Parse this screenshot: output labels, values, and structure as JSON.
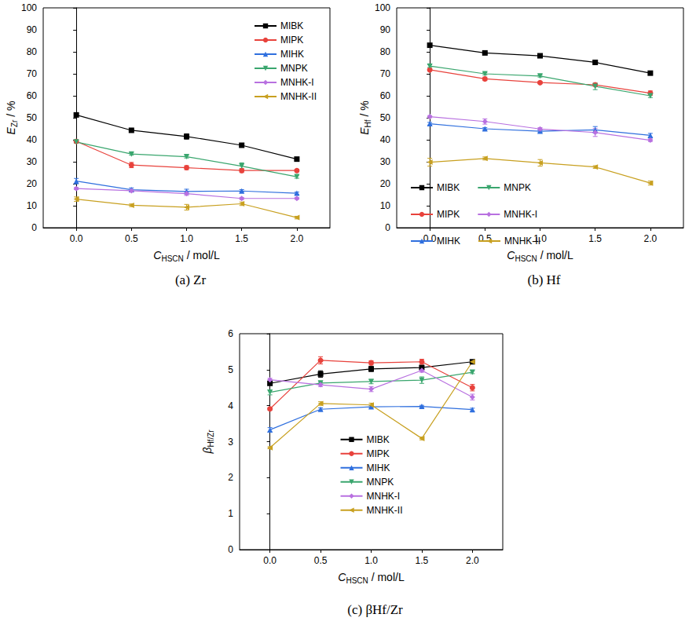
{
  "chart_data": [
    {
      "type": "line",
      "title": "(a) Zr",
      "x_label": "CHSCN / mol/L",
      "y_label": "EZr / %",
      "x": [
        0,
        0.5,
        1,
        1.5,
        2
      ],
      "xlim": [
        -0.3,
        2.3
      ],
      "xticks": [
        {
          "value": 0,
          "label": "0.0"
        },
        {
          "value": 0.5,
          "label": "0.5"
        },
        {
          "value": 1,
          "label": "1.0"
        },
        {
          "value": 1.5,
          "label": "1.5"
        },
        {
          "value": 2,
          "label": "2.0"
        }
      ],
      "ylim": [
        0,
        100
      ],
      "yticks": [
        0,
        10,
        20,
        30,
        40,
        50,
        60,
        70,
        80,
        90,
        100
      ],
      "grid": false,
      "legend": "upper right",
      "series": [
        {
          "name": "MIBK",
          "color": "#000000",
          "marker": "square",
          "values": [
            51.3,
            44.3,
            41.5,
            37.5,
            31.2
          ],
          "errors": [
            0.6,
            0.5,
            1.2,
            0.5,
            0.5
          ]
        },
        {
          "name": "MIPK",
          "color": "#e8423c",
          "marker": "circle",
          "values": [
            39.3,
            28.5,
            27.3,
            26.0,
            26.0
          ],
          "errors": [
            0.5,
            1.2,
            0.9,
            0.9,
            0.6
          ]
        },
        {
          "name": "MIHK",
          "color": "#2f6fde",
          "marker": "triangle-up",
          "values": [
            21.2,
            17.3,
            16.5,
            16.7,
            15.7
          ],
          "errors": [
            1.2,
            0.8,
            1.0,
            0.6,
            0.5
          ]
        },
        {
          "name": "MNPK",
          "color": "#3aa66e",
          "marker": "triangle-down",
          "values": [
            39.0,
            33.5,
            32.3,
            28.0,
            23.2
          ],
          "errors": [
            0.6,
            0.5,
            0.6,
            1.5,
            0.7
          ]
        },
        {
          "name": "MNHK-I",
          "color": "#b870e0",
          "marker": "diamond",
          "values": [
            17.8,
            16.8,
            15.5,
            13.3,
            13.3
          ],
          "errors": [
            0.5,
            0.6,
            0.8,
            0.5,
            0.4
          ]
        },
        {
          "name": "MNHK-II",
          "color": "#c8a020",
          "marker": "triangle-left",
          "values": [
            13.0,
            10.2,
            9.3,
            10.9,
            4.6
          ],
          "errors": [
            1.0,
            0.6,
            1.3,
            0.8,
            0.6
          ]
        }
      ]
    },
    {
      "type": "line",
      "title": "(b) Hf",
      "x_label": "CHSCN / mol/L",
      "y_label": "EHf / %",
      "x": [
        0,
        0.5,
        1,
        1.5,
        2
      ],
      "xlim": [
        -0.3,
        2.3
      ],
      "xticks": [
        {
          "value": 0,
          "label": "0.0"
        },
        {
          "value": 0.5,
          "label": "0.5"
        },
        {
          "value": 1,
          "label": "1.0"
        },
        {
          "value": 1.5,
          "label": "1.5"
        },
        {
          "value": 2,
          "label": "2.0"
        }
      ],
      "ylim": [
        0,
        100
      ],
      "yticks": [
        0,
        10,
        20,
        30,
        40,
        50,
        60,
        70,
        80,
        90,
        100
      ],
      "grid": false,
      "legend": "lower left",
      "series": [
        {
          "name": "MIBK",
          "color": "#000000",
          "marker": "square",
          "values": [
            83.0,
            79.5,
            78.2,
            75.2,
            70.3
          ],
          "errors": [
            0.5,
            0.4,
            0.5,
            0.7,
            0.8
          ]
        },
        {
          "name": "MIPK",
          "color": "#e8423c",
          "marker": "circle",
          "values": [
            71.8,
            67.7,
            66.0,
            65.0,
            61.2
          ],
          "errors": [
            0.6,
            0.8,
            0.5,
            0.6,
            1.0
          ]
        },
        {
          "name": "MIHK",
          "color": "#2f6fde",
          "marker": "triangle-up",
          "values": [
            47.3,
            45.0,
            43.9,
            44.5,
            42.0
          ],
          "errors": [
            0.6,
            0.5,
            0.5,
            1.5,
            0.9
          ]
        },
        {
          "name": "MNPK",
          "color": "#3aa66e",
          "marker": "triangle-down",
          "values": [
            73.5,
            70.0,
            69.0,
            64.3,
            60.0
          ],
          "errors": [
            0.6,
            0.5,
            0.5,
            1.5,
            0.8
          ]
        },
        {
          "name": "MNHK-I",
          "color": "#b870e0",
          "marker": "diamond",
          "values": [
            50.5,
            48.3,
            44.9,
            43.3,
            39.8
          ],
          "errors": [
            0.5,
            1.2,
            0.6,
            1.8,
            0.6
          ]
        },
        {
          "name": "MNHK-II",
          "color": "#c8a020",
          "marker": "triangle-left",
          "values": [
            29.8,
            31.5,
            29.5,
            27.6,
            20.3
          ],
          "errors": [
            1.8,
            0.7,
            1.5,
            0.6,
            0.9
          ]
        }
      ]
    },
    {
      "type": "line",
      "title": "(c) βHf/Zr",
      "x_label": "CHSCN / mol/L",
      "y_label": "βHf/Zr",
      "x": [
        0,
        0.5,
        1,
        1.5,
        2
      ],
      "xlim": [
        -0.3,
        2.3
      ],
      "xticks": [
        {
          "value": 0,
          "label": "0.0"
        },
        {
          "value": 0.5,
          "label": "0.5"
        },
        {
          "value": 1,
          "label": "1.0"
        },
        {
          "value": 1.5,
          "label": "1.5"
        },
        {
          "value": 2,
          "label": "2.0"
        }
      ],
      "ylim": [
        0,
        6
      ],
      "yticks": [
        0,
        1,
        2,
        3,
        4,
        5,
        6
      ],
      "grid": false,
      "legend": "lower center",
      "series": [
        {
          "name": "MIBK",
          "color": "#000000",
          "marker": "square",
          "values": [
            4.62,
            4.88,
            5.02,
            5.06,
            5.22
          ],
          "errors": [
            0.05,
            0.09,
            0.07,
            0.05,
            0.04
          ]
        },
        {
          "name": "MIPK",
          "color": "#e8423c",
          "marker": "circle",
          "values": [
            3.91,
            5.26,
            5.19,
            5.22,
            4.5
          ],
          "errors": [
            0.03,
            0.1,
            0.06,
            0.07,
            0.09
          ]
        },
        {
          "name": "MIHK",
          "color": "#2f6fde",
          "marker": "triangle-up",
          "values": [
            3.33,
            3.9,
            3.97,
            3.98,
            3.89
          ],
          "errors": [
            0.06,
            0.04,
            0.04,
            0.03,
            0.04
          ]
        },
        {
          "name": "MNPK",
          "color": "#3aa66e",
          "marker": "triangle-down",
          "values": [
            4.37,
            4.63,
            4.67,
            4.71,
            4.93
          ],
          "errors": [
            0.07,
            0.04,
            0.06,
            0.09,
            0.04
          ]
        },
        {
          "name": "MNHK-I",
          "color": "#b870e0",
          "marker": "diamond",
          "values": [
            4.72,
            4.58,
            4.46,
            4.98,
            4.24
          ],
          "errors": [
            0.04,
            0.05,
            0.07,
            0.05,
            0.08
          ]
        },
        {
          "name": "MNHK-II",
          "color": "#c8a020",
          "marker": "triangle-left",
          "values": [
            2.83,
            4.06,
            4.02,
            3.09,
            5.22
          ],
          "errors": [
            0.03,
            0.05,
            0.05,
            0.04,
            0.05
          ]
        }
      ]
    }
  ]
}
